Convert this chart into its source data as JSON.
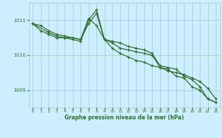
{
  "title": "Graphe pression niveau de la mer (hPa)",
  "bg_color": "#cceeff",
  "grid_color": "#aacccc",
  "line_color": "#2d6e2d",
  "marker_color": "#2d6e2d",
  "xlim": [
    -0.5,
    23.5
  ],
  "ylim": [
    1008.5,
    1011.5
  ],
  "yticks": [
    1009,
    1010,
    1011
  ],
  "xticks": [
    0,
    1,
    2,
    3,
    4,
    5,
    6,
    7,
    8,
    9,
    10,
    11,
    12,
    13,
    14,
    15,
    16,
    17,
    18,
    19,
    20,
    21,
    22,
    23
  ],
  "series1": {
    "x": [
      0,
      1,
      2,
      3,
      4,
      5,
      6,
      7,
      8,
      9,
      10,
      11,
      12,
      13,
      14,
      15,
      16,
      17,
      18,
      19,
      20,
      21,
      22,
      23
    ],
    "y": [
      1010.9,
      1010.85,
      1010.7,
      1010.6,
      1010.55,
      1010.5,
      1010.45,
      1011.05,
      1010.85,
      1010.45,
      1010.2,
      1010.05,
      1009.95,
      1009.85,
      1009.8,
      1009.7,
      1009.65,
      1009.55,
      1009.5,
      1009.45,
      1009.35,
      1009.25,
      1009.05,
      1008.75
    ]
  },
  "series2": {
    "x": [
      0,
      2,
      3,
      4,
      5,
      6,
      7,
      8,
      9,
      10,
      11,
      12,
      13,
      14,
      15,
      16,
      17,
      18,
      19,
      20,
      21,
      22,
      23
    ],
    "y": [
      1010.9,
      1010.65,
      1010.55,
      1010.5,
      1010.5,
      1010.45,
      1010.9,
      1011.2,
      1010.45,
      1010.4,
      1010.35,
      1010.25,
      1010.2,
      1010.15,
      1010.05,
      1009.7,
      1009.65,
      1009.6,
      1009.4,
      1009.3,
      1009.1,
      1008.75,
      1008.65
    ]
  },
  "series3": {
    "x": [
      0,
      1,
      2,
      3,
      4,
      5,
      6,
      7,
      8,
      9,
      10,
      11,
      12,
      13,
      14,
      15,
      16,
      17,
      18,
      19,
      20,
      21,
      22,
      23
    ],
    "y": [
      1010.9,
      1010.7,
      1010.6,
      1010.5,
      1010.5,
      1010.45,
      1010.4,
      1011.0,
      1011.3,
      1010.45,
      1010.35,
      1010.2,
      1010.15,
      1010.1,
      1010.05,
      1010.0,
      1009.65,
      1009.6,
      1009.4,
      1009.35,
      1009.1,
      1009.0,
      1008.75,
      1008.65
    ]
  }
}
